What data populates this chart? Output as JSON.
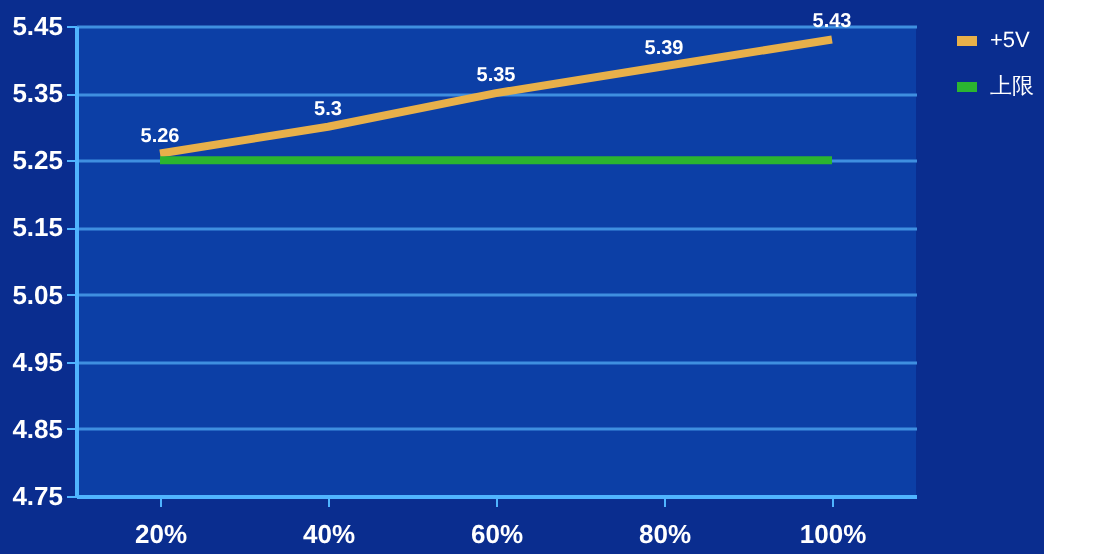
{
  "chart_data": {
    "type": "line",
    "categories": [
      "20%",
      "40%",
      "60%",
      "80%",
      "100%"
    ],
    "series": [
      {
        "name": "+5V",
        "color": "#e8b04a",
        "values": [
          5.26,
          5.3,
          5.35,
          5.39,
          5.43
        ],
        "value_labels": [
          "5.26",
          "5.3",
          "5.35",
          "5.39",
          "5.43"
        ]
      },
      {
        "name": "上限",
        "color": "#2bb530",
        "values": [
          5.25,
          5.25,
          5.25,
          5.25,
          5.25
        ]
      }
    ],
    "ylim": [
      4.75,
      5.45
    ],
    "yticks": [
      4.75,
      4.85,
      4.95,
      5.05,
      5.15,
      5.25,
      5.35,
      5.45
    ],
    "grid": "y",
    "legend": "right",
    "marker": "none",
    "line_style": "solid"
  }
}
